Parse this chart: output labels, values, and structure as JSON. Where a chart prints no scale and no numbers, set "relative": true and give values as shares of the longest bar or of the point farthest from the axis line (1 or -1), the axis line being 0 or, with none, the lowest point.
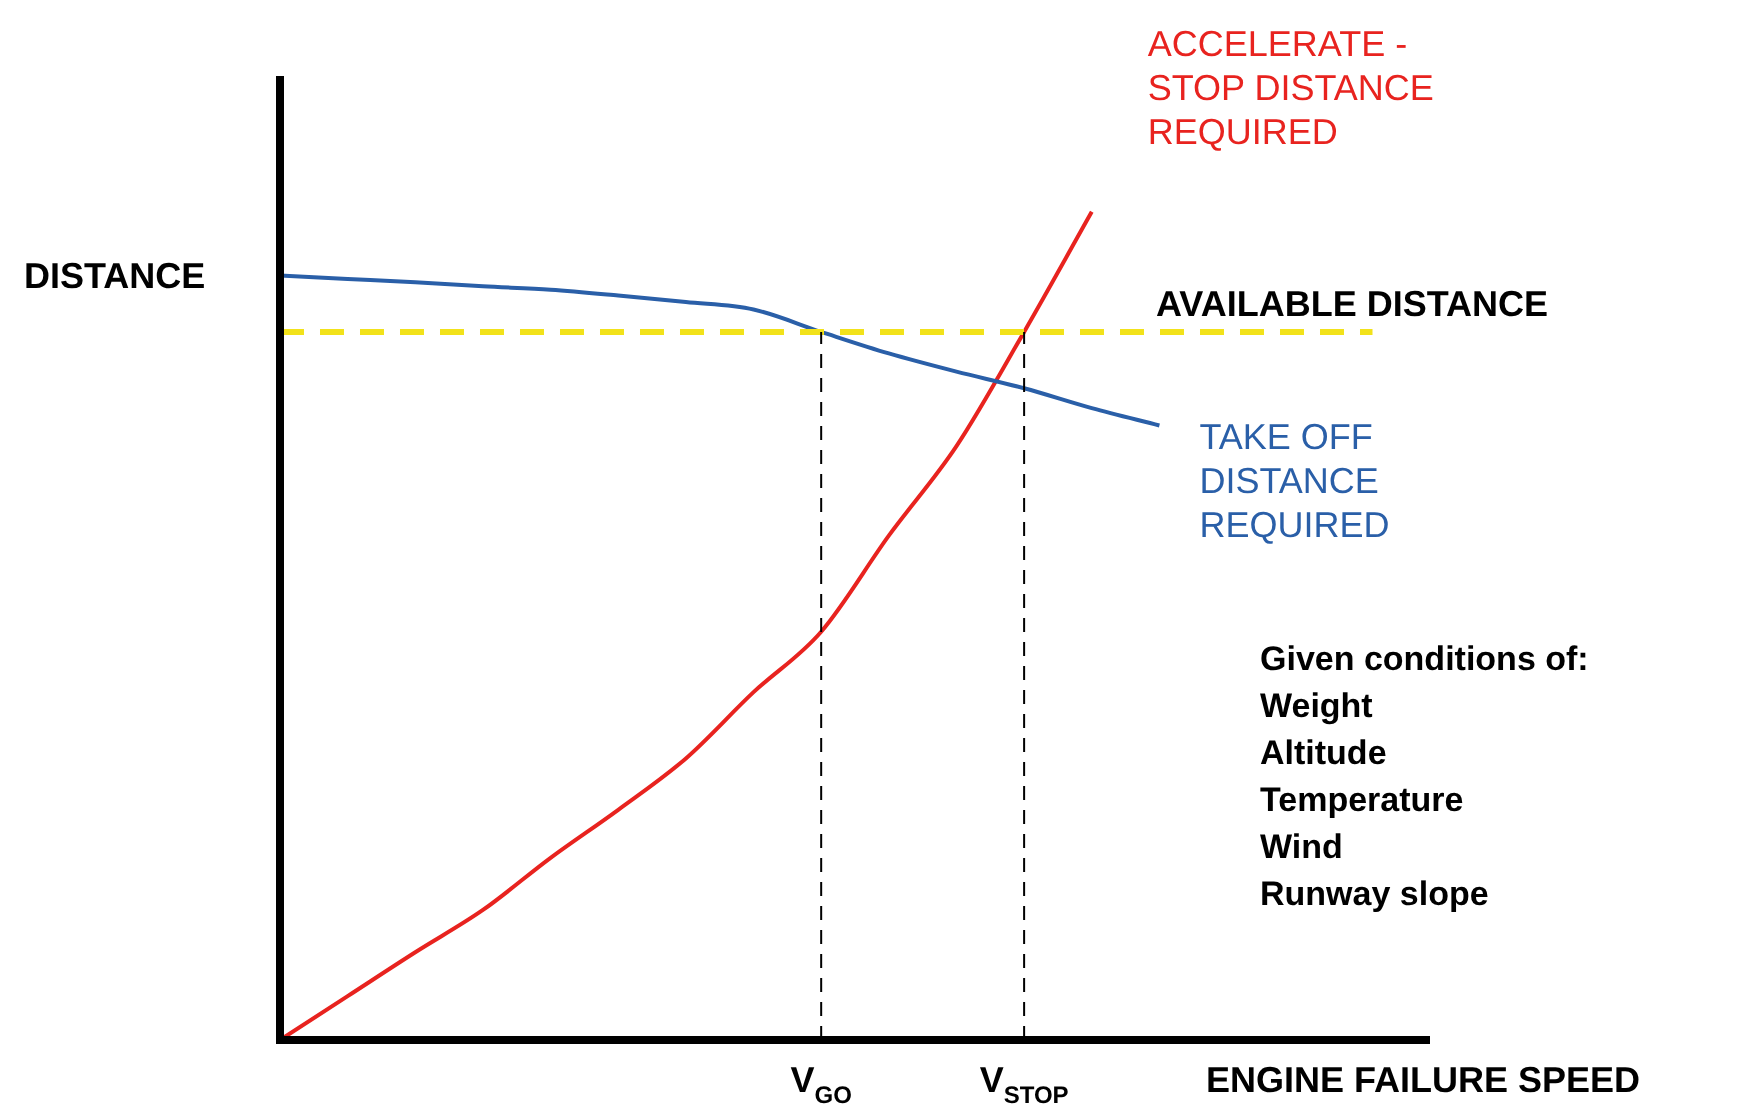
{
  "chart_data": {
    "type": "line",
    "relative": true,
    "xlabel": "ENGINE FAILURE SPEED",
    "ylabel": "DISTANCE",
    "categories": [
      null,
      null,
      null,
      null,
      null,
      null,
      null,
      null,
      "V$_{GO}$",
      null,
      null,
      "V$_{STOP}$",
      null,
      null,
      null,
      null,
      null,
      null
    ],
    "series": [
      {
        "name": "TAKE OFF DISTANCE REQUIRED",
        "color": "#2a5fa8",
        "values": [
          0.923,
          0.919,
          0.915,
          0.91,
          0.906,
          0.899,
          0.891,
          0.882,
          0.855,
          0.829,
          0.807,
          0.787,
          0.763,
          0.742,
          null,
          null,
          null,
          null
        ]
      },
      {
        "name": "ACCELERATE - STOP DISTANCE REQUIRED",
        "color": "#e8231f",
        "values": [
          0,
          0.053,
          0.106,
          0.157,
          0.22,
          0.278,
          0.34,
          0.42,
          0.493,
          0.609,
          0.717,
          0.855,
          1.0,
          null,
          null,
          null,
          null,
          null
        ]
      }
    ],
    "ref_lines": [
      {
        "axis": "y",
        "value": 0.855,
        "label": "AVAILABLE DISTANCE",
        "color": "#f2e21a",
        "line_style": "dashed"
      },
      {
        "axis": "x",
        "value": "V$_{GO}$",
        "color": "#000000",
        "line_style": "dashed"
      },
      {
        "axis": "x",
        "value": "V$_{STOP}$",
        "color": "#000000",
        "line_style": "dashed"
      }
    ],
    "annotations": [
      "Given conditions of:",
      "Weight",
      "Altitude",
      "Temperature",
      "Wind",
      "Runway slope"
    ],
    "legend": false,
    "marker": "none",
    "line_style": "solid"
  }
}
